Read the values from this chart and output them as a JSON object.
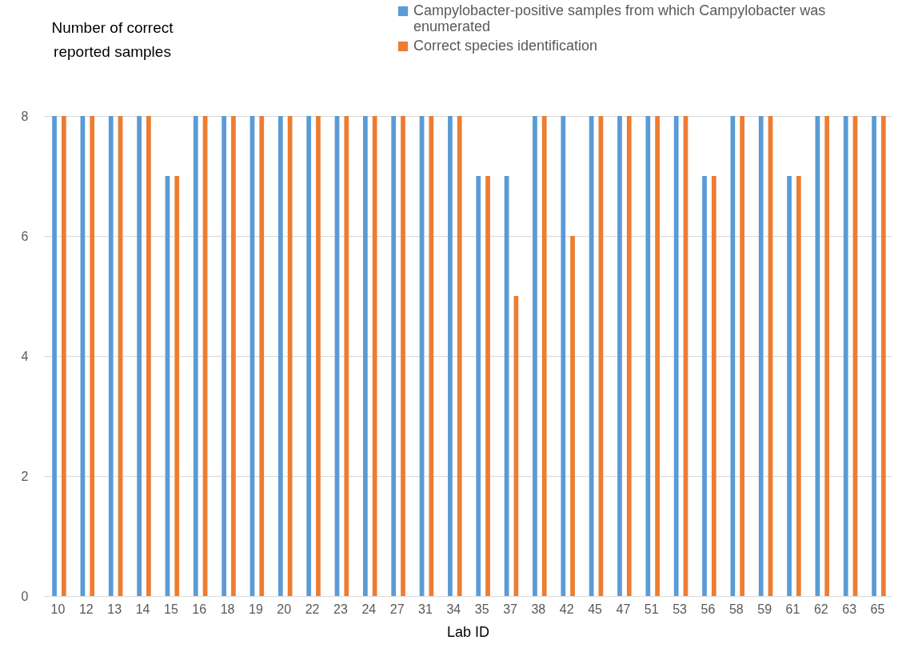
{
  "chart_data": {
    "type": "bar",
    "xlabel": "Lab ID",
    "ylabel": "Number of correct reported samples",
    "categories": [
      "10",
      "12",
      "13",
      "14",
      "15",
      "16",
      "18",
      "19",
      "20",
      "22",
      "23",
      "24",
      "27",
      "31",
      "34",
      "35",
      "37",
      "38",
      "42",
      "45",
      "47",
      "51",
      "53",
      "56",
      "58",
      "59",
      "61",
      "62",
      "63",
      "65"
    ],
    "series": [
      {
        "name": "Campylobacter-positive samples from which Campylobacter was enumerated",
        "color": "#5b9bd5",
        "values": [
          8,
          8,
          8,
          8,
          7,
          8,
          8,
          8,
          8,
          8,
          8,
          8,
          8,
          8,
          8,
          7,
          7,
          8,
          8,
          8,
          8,
          8,
          8,
          7,
          8,
          8,
          7,
          8,
          8,
          8
        ]
      },
      {
        "name": "Correct species identification",
        "color": "#ed7d31",
        "values": [
          8,
          8,
          8,
          8,
          7,
          8,
          8,
          8,
          8,
          8,
          8,
          8,
          8,
          8,
          8,
          7,
          5,
          8,
          6,
          8,
          8,
          8,
          8,
          7,
          8,
          8,
          7,
          8,
          8,
          8
        ]
      }
    ],
    "ylim": [
      0,
      8
    ],
    "yticks": [
      0,
      2,
      4,
      6,
      8
    ],
    "grid": "y",
    "legend": "top right"
  }
}
